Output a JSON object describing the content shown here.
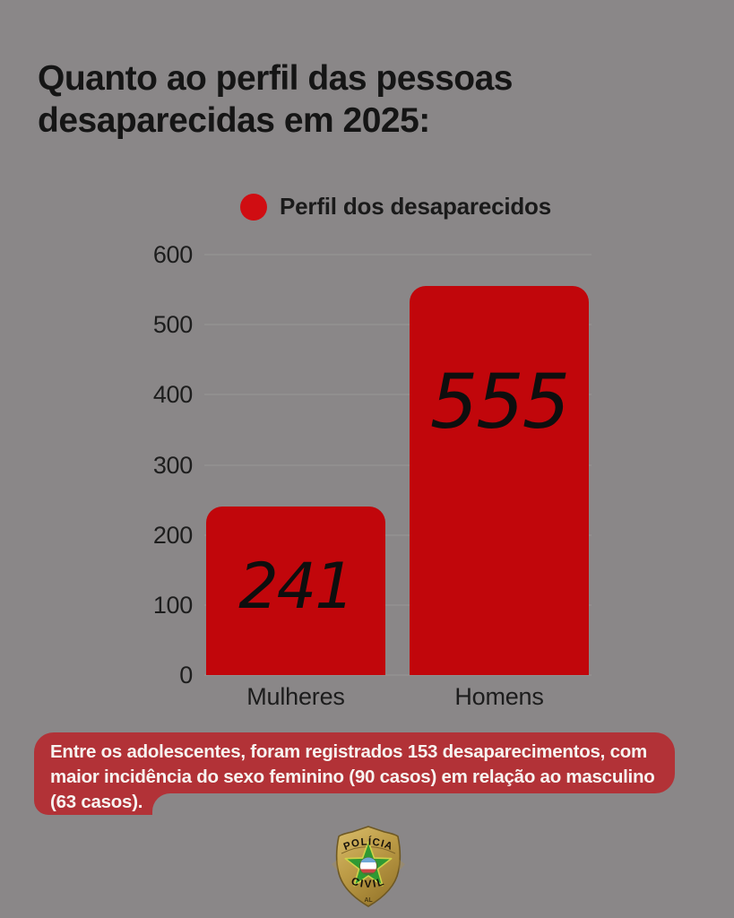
{
  "title": {
    "lines": [
      "Quanto ao perfil das pessoas",
      "desaparecidas em 2025:"
    ]
  },
  "legend": {
    "label": "Perfil dos desaparecidos"
  },
  "chart_data": {
    "type": "bar",
    "title": "Perfil dos desaparecidos",
    "categories": [
      "Mulheres",
      "Homens"
    ],
    "values": [
      241,
      555
    ],
    "series": [
      {
        "name": "Perfil dos desaparecidos",
        "values": [
          241,
          555
        ]
      }
    ],
    "xlabel": "",
    "ylabel": "",
    "ylim": [
      0,
      600
    ],
    "yticks": [
      0,
      100,
      200,
      300,
      400,
      500,
      600
    ],
    "grid": true,
    "legend_position": "top-center",
    "bar_color": "#c1060b",
    "value_labels": [
      "241",
      "555"
    ]
  },
  "callout": {
    "lines": [
      "Entre os adolescentes, foram registrados 153 desaparecimentos, com",
      "maior incidência do sexo feminino (90 casos) em relação ao masculino",
      "(63 casos)."
    ]
  },
  "badge": {
    "top_label": "POLÍCIA",
    "bottom_label": "CIVIL",
    "state_label": "AL"
  },
  "colors": {
    "background": "#8a8788",
    "title_text": "#151515",
    "bar": "#c1060b",
    "gridline": "#989596",
    "callout_bg": "#b23237",
    "callout_text": "#f7f3f0",
    "legend_dot": "#d00d12"
  }
}
